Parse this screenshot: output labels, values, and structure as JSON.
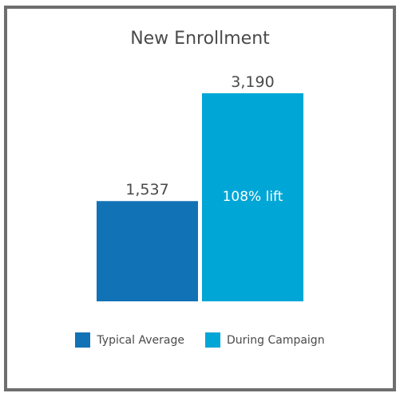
{
  "chart_data": {
    "type": "bar",
    "title": "New Enrollment",
    "categories": [
      "Typical Average",
      "During Campaign"
    ],
    "values": [
      1537,
      3190
    ],
    "value_labels": [
      "1,537",
      "3,190"
    ],
    "colors": [
      "#1272b6",
      "#00a6d6"
    ],
    "annotations": [
      {
        "category": "During Campaign",
        "text": "108% lift"
      }
    ],
    "xlabel": "",
    "ylabel": "",
    "ylim": [
      0,
      3190
    ],
    "grid": false,
    "legend_position": "bottom"
  }
}
